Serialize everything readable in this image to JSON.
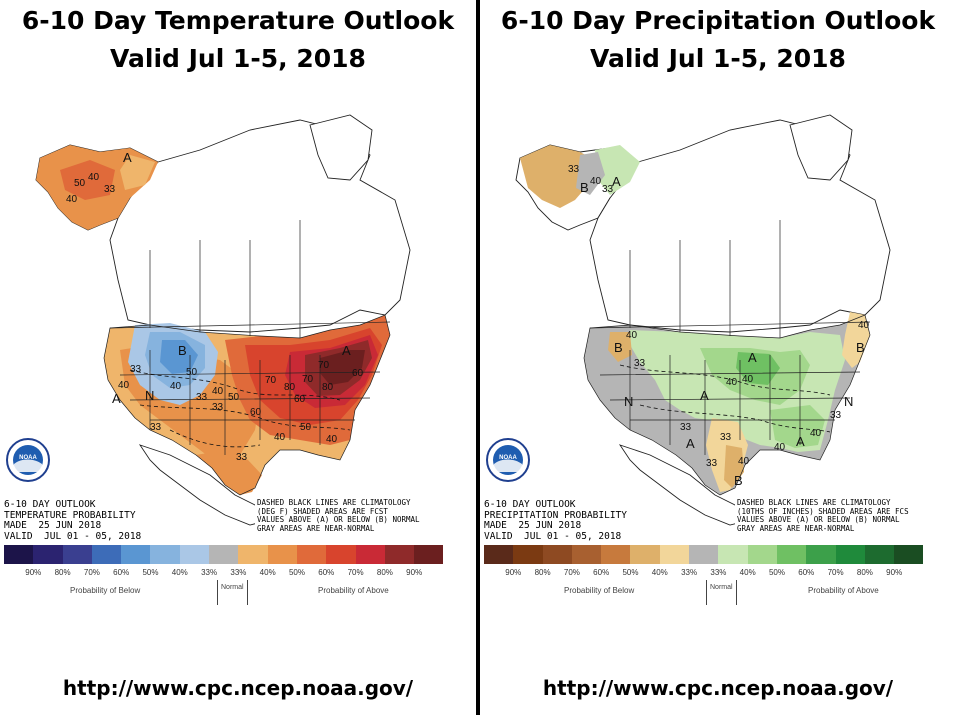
{
  "left_panel": {
    "title_line1": "6-10 Day Temperature Outlook",
    "title_line2": "Valid Jul 1-5, 2018",
    "meta_line1": "6-10 DAY OUTLOOK",
    "meta_line2": "TEMPERATURE PROBABILITY",
    "meta_line3": "MADE  25 JUN 2018",
    "meta_line4": "VALID  JUL 01 - 05, 2018",
    "note": "DASHED BLACK LINES ARE CLIMATOLOGY\n(DEG F) SHADED AREAS ARE FCST\nVALUES ABOVE (A) OR BELOW (B) NORMAL\nGRAY AREAS ARE NEAR-NORMAL",
    "legend_ticks": [
      "90%",
      "80%",
      "70%",
      "60%",
      "50%",
      "40%",
      "33%",
      "33%",
      "40%",
      "50%",
      "60%",
      "70%",
      "80%",
      "90%"
    ],
    "below_label": "Probability of Below",
    "normal_label": "Normal",
    "above_label": "Probability of Above",
    "url": "http://www.cpc.ncep.noaa.gov/",
    "colors": [
      "#1c1449",
      "#2b2370",
      "#3a3f90",
      "#3d6cb8",
      "#5a96d2",
      "#86b3de",
      "#aac7e6",
      "#b5b5b5",
      "#efb56b",
      "#e8924a",
      "#e06a3a",
      "#d8442d",
      "#c92a36",
      "#8f2a2a",
      "#6b1f1f"
    ],
    "map_labels": [
      "A",
      "40",
      "33",
      "50",
      "40",
      "B",
      "50",
      "40",
      "33",
      "N",
      "A",
      "40",
      "33",
      "50",
      "40",
      "33",
      "60",
      "70",
      "80",
      "70",
      "60",
      "80",
      "70",
      "A",
      "60",
      "50",
      "40",
      "40",
      "33",
      "33"
    ]
  },
  "right_panel": {
    "title_line1": "6-10 Day Precipitation Outlook",
    "title_line2": "Valid Jul 1-5, 2018",
    "meta_line1": "6-10 DAY OUTLOOK",
    "meta_line2": "PRECIPITATION PROBABILITY",
    "meta_line3": "MADE  25 JUN 2018",
    "meta_line4": "VALID  JUL 01 - 05, 2018",
    "note": "DASHED BLACK LINES ARE CLIMATOLOGY\n(10THS OF INCHES) SHADED AREAS ARE FCS\nVALUES ABOVE (A) OR BELOW (B) NORMAL\nGRAY AREAS ARE NEAR-NORMAL",
    "legend_ticks": [
      "90%",
      "80%",
      "70%",
      "60%",
      "50%",
      "40%",
      "33%",
      "33%",
      "40%",
      "50%",
      "60%",
      "70%",
      "80%",
      "90%"
    ],
    "below_label": "Probability of Below",
    "normal_label": "Normal",
    "above_label": "Probability of Above",
    "url": "http://www.cpc.ncep.noaa.gov/",
    "colors": [
      "#5a2a1a",
      "#7b3a12",
      "#8e4a22",
      "#a86030",
      "#c77a3d",
      "#deb06a",
      "#f2d69a",
      "#b5b5b5",
      "#c7e6b3",
      "#a3d78c",
      "#6fc063",
      "#3ca04a",
      "#1f8a3b",
      "#1d6b2f",
      "#1a4d22"
    ],
    "map_labels": [
      "33",
      "B",
      "40",
      "33",
      "A",
      "B",
      "40",
      "33",
      "N",
      "A",
      "33",
      "40",
      "A",
      "40",
      "A",
      "33",
      "40",
      "B",
      "33",
      "40",
      "A",
      "40",
      "33",
      "B",
      "N",
      "40"
    ]
  },
  "noaa_logo_text": "NOAA"
}
